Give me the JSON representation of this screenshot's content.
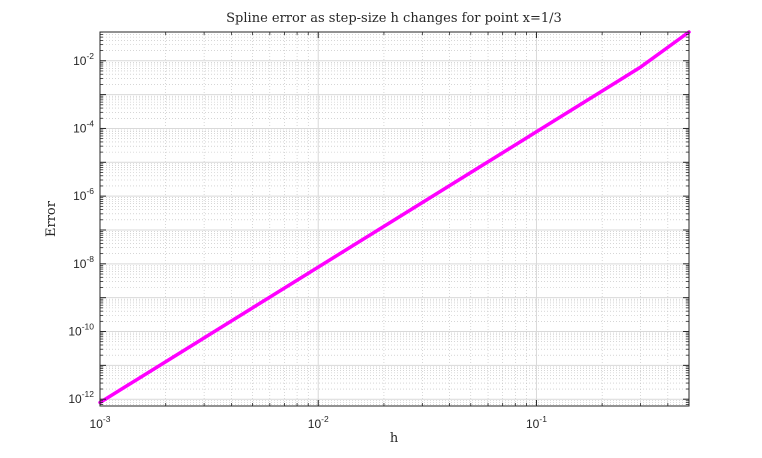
{
  "chart_data": {
    "type": "line",
    "title": "Spline error as step-size h changes for point x=1/3",
    "xlabel": "h",
    "ylabel": "Error",
    "xscale": "log",
    "yscale": "log",
    "xlim": [
      0.001,
      0.5
    ],
    "ylim": [
      6.3e-13,
      0.0708
    ],
    "grid": true,
    "minor_grid": true,
    "x_ticks": [
      {
        "value": 0.001,
        "base": "10",
        "exp": "-3"
      },
      {
        "value": 0.01,
        "base": "10",
        "exp": "-2"
      },
      {
        "value": 0.1,
        "base": "10",
        "exp": "-1"
      }
    ],
    "y_ticks": [
      {
        "value": 1e-12,
        "base": "10",
        "exp": "-12"
      },
      {
        "value": 1e-10,
        "base": "10",
        "exp": "-10"
      },
      {
        "value": 1e-08,
        "base": "10",
        "exp": "-8"
      },
      {
        "value": 1e-06,
        "base": "10",
        "exp": "-6"
      },
      {
        "value": 0.0001,
        "base": "10",
        "exp": "-4"
      },
      {
        "value": 0.01,
        "base": "10",
        "exp": "-2"
      }
    ],
    "series": [
      {
        "color": "#ff00ff",
        "x": [
          0.001,
          0.002,
          0.005,
          0.01,
          0.02,
          0.05,
          0.1,
          0.2,
          0.3,
          0.5
        ],
        "y": [
          8e-13,
          1.28e-11,
          5e-10,
          8e-09,
          1.28e-07,
          5e-06,
          8e-05,
          0.00128,
          0.0065,
          0.0708
        ]
      }
    ]
  }
}
